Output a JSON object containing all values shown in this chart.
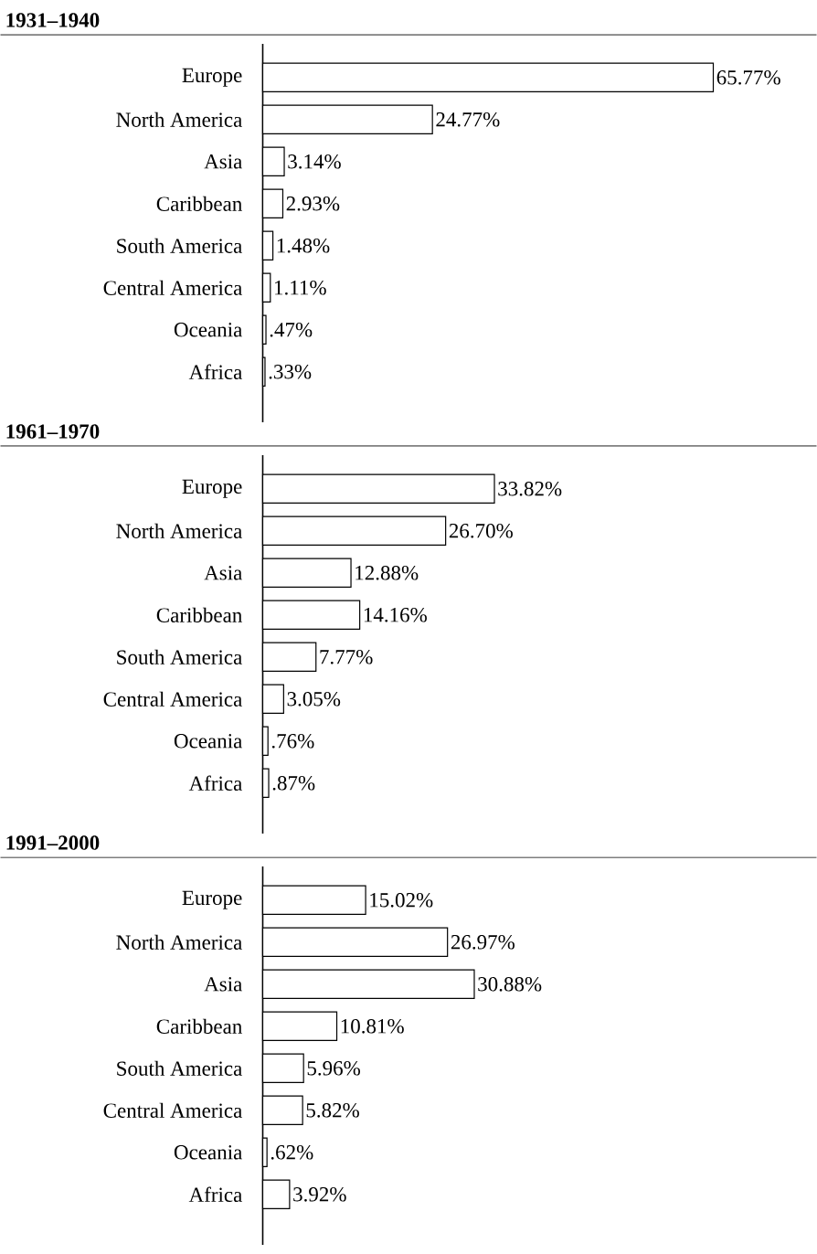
{
  "chart_data": [
    {
      "type": "bar",
      "orientation": "horizontal",
      "title": "1931–1940",
      "categories": [
        "Europe",
        "North America",
        "Asia",
        "Caribbean",
        "South America",
        "Central America",
        "Oceania",
        "Africa"
      ],
      "values": [
        65.77,
        24.77,
        3.14,
        2.93,
        1.48,
        1.11,
        0.47,
        0.33
      ],
      "value_labels": [
        "65.77%",
        "24.77%",
        "3.14%",
        "2.93%",
        "1.48%",
        "1.11%",
        ".47%",
        ".33%"
      ],
      "color": "#ffffff",
      "tick_labels": "y"
    },
    {
      "type": "bar",
      "orientation": "horizontal",
      "title": "1961–1970",
      "categories": [
        "Europe",
        "North America",
        "Asia",
        "Caribbean",
        "South America",
        "Central America",
        "Oceania",
        "Africa"
      ],
      "values": [
        33.82,
        26.7,
        12.88,
        14.16,
        7.77,
        3.05,
        0.76,
        0.87
      ],
      "value_labels": [
        "33.82%",
        "26.70%",
        "12.88%",
        "14.16%",
        "7.77%",
        "3.05%",
        ".76%",
        ".87%"
      ],
      "color": "#ffffff",
      "tick_labels": "y"
    },
    {
      "type": "bar",
      "orientation": "horizontal",
      "title": "1991–2000",
      "categories": [
        "Europe",
        "North America",
        "Asia",
        "Caribbean",
        "South America",
        "Central America",
        "Oceania",
        "Africa"
      ],
      "values": [
        15.02,
        26.97,
        30.88,
        10.81,
        5.96,
        5.82,
        0.62,
        3.92
      ],
      "value_labels": [
        "15.02%",
        "26.97%",
        "30.88%",
        "10.81%",
        "5.96%",
        "5.82%",
        ".62%",
        "3.92%"
      ],
      "color": "#ffffff",
      "tick_labels": "y"
    }
  ]
}
